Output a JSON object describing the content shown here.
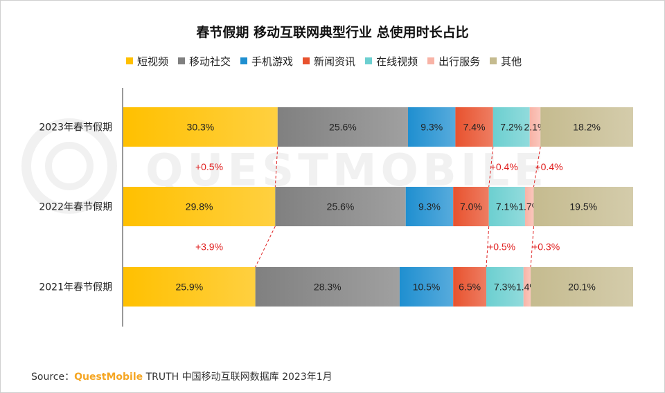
{
  "title": "春节假期 移动互联网典型行业 总使用时长占比",
  "legend": [
    {
      "label": "短视频",
      "color": "#ffc000"
    },
    {
      "label": "移动社交",
      "color": "#808080"
    },
    {
      "label": "手机游戏",
      "color": "#1f8fd0"
    },
    {
      "label": "新闻资讯",
      "color": "#e8522e"
    },
    {
      "label": "在线视频",
      "color": "#6ccfd0"
    },
    {
      "label": "出行服务",
      "color": "#f8b3a6"
    },
    {
      "label": "其他",
      "color": "#c5bb8f"
    }
  ],
  "source": {
    "prefix": "Source：",
    "brand": "QuestMobile",
    "suffix": " TRUTH 中国移动互联网数据库 2023年1月"
  },
  "watermark": "QUESTMOBILE",
  "chart_data": {
    "type": "bar",
    "orientation": "horizontal",
    "stacked": "percent",
    "categories": [
      "2023年春节假期",
      "2022年春节假期",
      "2021年春节假期"
    ],
    "series": [
      {
        "name": "短视频",
        "values": [
          30.3,
          29.8,
          25.9
        ],
        "labels": [
          "30.3%",
          "29.8%",
          "25.9%"
        ]
      },
      {
        "name": "移动社交",
        "values": [
          25.6,
          25.6,
          28.3
        ],
        "labels": [
          "25.6%",
          "25.6%",
          "28.3%"
        ]
      },
      {
        "name": "手机游戏",
        "values": [
          9.3,
          9.3,
          10.5
        ],
        "labels": [
          "9.3%",
          "9.3%",
          "10.5%"
        ]
      },
      {
        "name": "新闻资讯",
        "values": [
          7.4,
          7.0,
          6.5
        ],
        "labels": [
          "7.4%",
          "7.0%",
          "6.5%"
        ]
      },
      {
        "name": "在线视频",
        "values": [
          7.2,
          7.1,
          7.3
        ],
        "labels": [
          "7.2%",
          "7.1%",
          "7.3%"
        ]
      },
      {
        "name": "出行服务",
        "values": [
          2.1,
          1.7,
          1.4
        ],
        "labels": [
          "2.1%",
          "1.7%",
          "1.4%"
        ]
      },
      {
        "name": "其他",
        "values": [
          18.2,
          19.5,
          20.1
        ],
        "labels": [
          "18.2%",
          "19.5%",
          "20.1%"
        ]
      }
    ],
    "changes": [
      {
        "series": "短视频",
        "between": [
          "2023年春节假期",
          "2022年春节假期"
        ],
        "label": "+0.5%"
      },
      {
        "series": "新闻资讯",
        "between": [
          "2023年春节假期",
          "2022年春节假期"
        ],
        "label": "+0.4%"
      },
      {
        "series": "出行服务",
        "between": [
          "2023年春节假期",
          "2022年春节假期"
        ],
        "label": "+0.4%"
      },
      {
        "series": "短视频",
        "between": [
          "2022年春节假期",
          "2021年春节假期"
        ],
        "label": "+3.9%"
      },
      {
        "series": "新闻资讯",
        "between": [
          "2022年春节假期",
          "2021年春节假期"
        ],
        "label": "+0.5%"
      },
      {
        "series": "出行服务",
        "between": [
          "2022年春节假期",
          "2021年春节假期"
        ],
        "label": "+0.3%"
      }
    ],
    "change_color": "#e02020"
  }
}
